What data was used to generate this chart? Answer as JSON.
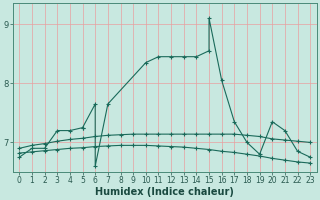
{
  "background_color": "#c8e8e0",
  "grid_color": "#e8a0a0",
  "line_color": "#1a6a5a",
  "xlim": [
    -0.5,
    23.5
  ],
  "ylim": [
    6.5,
    9.35
  ],
  "yticks": [
    7,
    8,
    9
  ],
  "xticks": [
    0,
    1,
    2,
    3,
    4,
    5,
    6,
    7,
    8,
    9,
    10,
    11,
    12,
    13,
    14,
    15,
    16,
    17,
    18,
    19,
    20,
    21,
    22,
    23
  ],
  "xlabel": "Humidex (Indice chaleur)",
  "xlabel_fontsize": 7,
  "tick_fontsize": 5.5,
  "series1_x": [
    0,
    1,
    2,
    3,
    4,
    5,
    5,
    6,
    6,
    7,
    10,
    11,
    12,
    13,
    14,
    15,
    15,
    16,
    17,
    18,
    19,
    20,
    21,
    22,
    23
  ],
  "series1_y": [
    6.75,
    6.9,
    6.9,
    7.2,
    7.2,
    7.25,
    7.25,
    7.65,
    6.6,
    7.65,
    8.35,
    8.45,
    8.45,
    8.45,
    8.45,
    8.55,
    9.1,
    8.05,
    7.35,
    7.0,
    6.8,
    7.35,
    7.2,
    6.85,
    6.75
  ],
  "series2_x": [
    0,
    1,
    2,
    3,
    4,
    5,
    6,
    7,
    8,
    9,
    10,
    11,
    12,
    13,
    14,
    15,
    16,
    17,
    18,
    19,
    20,
    21,
    22,
    23
  ],
  "series2_y": [
    6.9,
    6.95,
    6.98,
    7.02,
    7.05,
    7.07,
    7.1,
    7.12,
    7.13,
    7.14,
    7.14,
    7.14,
    7.14,
    7.14,
    7.14,
    7.14,
    7.14,
    7.14,
    7.12,
    7.1,
    7.06,
    7.04,
    7.02,
    7.0
  ],
  "series3_x": [
    0,
    1,
    2,
    3,
    4,
    5,
    6,
    7,
    8,
    9,
    10,
    11,
    12,
    13,
    14,
    15,
    16,
    17,
    18,
    19,
    20,
    21,
    22,
    23
  ],
  "series3_y": [
    6.82,
    6.84,
    6.86,
    6.88,
    6.9,
    6.91,
    6.93,
    6.94,
    6.95,
    6.95,
    6.95,
    6.94,
    6.93,
    6.92,
    6.9,
    6.88,
    6.85,
    6.83,
    6.8,
    6.77,
    6.73,
    6.7,
    6.67,
    6.65
  ]
}
